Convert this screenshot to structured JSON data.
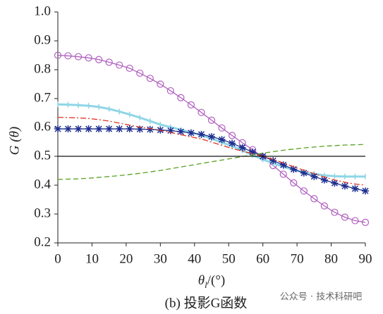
{
  "chart_data": {
    "type": "line",
    "y_label": "G (θ)",
    "x_label": {
      "symbol": "θ",
      "subscript": "l",
      "unit": "/(°)"
    },
    "caption": "(b) 投影G函数",
    "watermark": "公众号 · 技术科研吧",
    "x": [
      0,
      3,
      6,
      9,
      12,
      15,
      18,
      21,
      24,
      27,
      30,
      33,
      36,
      39,
      42,
      45,
      48,
      51,
      54,
      57,
      60,
      63,
      66,
      69,
      72,
      75,
      78,
      81,
      84,
      87,
      90
    ],
    "xlim": [
      0,
      90
    ],
    "xticks": [
      0,
      10,
      20,
      30,
      40,
      50,
      60,
      70,
      80,
      90
    ],
    "ylim": [
      0.2,
      1
    ],
    "yticks": [
      0.2,
      0.3,
      0.4,
      0.5,
      0.6,
      0.7,
      0.8,
      0.9,
      {
        "value": 1,
        "label": "1.0"
      }
    ],
    "series": [
      {
        "color": "#b05fc0",
        "marker": "circle",
        "dash": "none",
        "values": [
          0.85,
          0.848,
          0.845,
          0.841,
          0.835,
          0.826,
          0.816,
          0.805,
          0.788,
          0.77,
          0.75,
          0.727,
          0.703,
          0.678,
          0.652,
          0.625,
          0.598,
          0.572,
          0.547,
          0.523,
          0.497,
          0.468,
          0.438,
          0.408,
          0.38,
          0.353,
          0.328,
          0.306,
          0.289,
          0.277,
          0.271
        ]
      },
      {
        "color": "#8fd6e6",
        "marker": "tick",
        "dash": "none",
        "values": [
          0.68,
          0.679,
          0.677,
          0.675,
          0.671,
          0.664,
          0.655,
          0.645,
          0.634,
          0.622,
          0.61,
          0.601,
          0.592,
          0.583,
          0.573,
          0.561,
          0.548,
          0.535,
          0.52,
          0.504,
          0.489,
          0.476,
          0.464,
          0.453,
          0.445,
          0.439,
          0.434,
          0.431,
          0.43,
          0.43,
          0.43
        ]
      },
      {
        "color": "#1f2f8f",
        "marker": "star",
        "dash": "none",
        "values": [
          0.595,
          0.595,
          0.595,
          0.595,
          0.595,
          0.595,
          0.595,
          0.595,
          0.594,
          0.593,
          0.591,
          0.589,
          0.585,
          0.581,
          0.576,
          0.568,
          0.558,
          0.545,
          0.53,
          0.515,
          0.5,
          0.485,
          0.47,
          0.455,
          0.442,
          0.43,
          0.418,
          0.407,
          0.397,
          0.388,
          0.38
        ]
      },
      {
        "color": "#e03020",
        "marker": "none",
        "dash": "dashdot",
        "values": [
          0.635,
          0.634,
          0.633,
          0.631,
          0.627,
          0.622,
          0.615,
          0.608,
          0.601,
          0.596,
          0.59,
          0.583,
          0.575,
          0.567,
          0.56,
          0.549,
          0.538,
          0.527,
          0.518,
          0.509,
          0.5,
          0.489,
          0.477,
          0.464,
          0.452,
          0.44,
          0.428,
          0.418,
          0.41,
          0.404,
          0.4
        ]
      },
      {
        "color": "#5aa020",
        "marker": "none",
        "dash": "dash",
        "values": [
          0.42,
          0.421,
          0.422,
          0.424,
          0.427,
          0.43,
          0.433,
          0.437,
          0.441,
          0.446,
          0.451,
          0.457,
          0.463,
          0.469,
          0.475,
          0.481,
          0.487,
          0.493,
          0.499,
          0.505,
          0.511,
          0.516,
          0.521,
          0.525,
          0.529,
          0.532,
          0.535,
          0.537,
          0.539,
          0.54,
          0.541
        ]
      },
      {
        "color": "#111111",
        "marker": "none",
        "dash": "none",
        "values": [
          0.5,
          0.5,
          0.5,
          0.5,
          0.5,
          0.5,
          0.5,
          0.5,
          0.5,
          0.5,
          0.5,
          0.5,
          0.5,
          0.5,
          0.5,
          0.5,
          0.5,
          0.5,
          0.5,
          0.5,
          0.5,
          0.5,
          0.5,
          0.5,
          0.5,
          0.5,
          0.5,
          0.5,
          0.5,
          0.5,
          0.5
        ]
      }
    ]
  }
}
